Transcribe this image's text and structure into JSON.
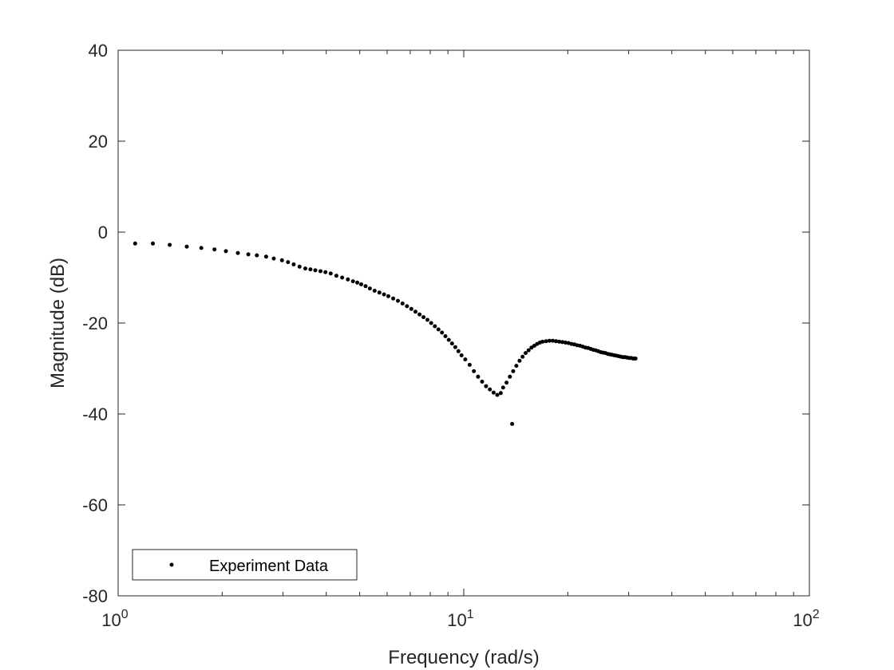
{
  "chart_data": {
    "type": "scatter",
    "xlabel": "Frequency (rad/s)",
    "ylabel": "Magnitude (dB)",
    "xscale": "log",
    "xlim": [
      1,
      100
    ],
    "ylim": [
      -80,
      40
    ],
    "xticks": [
      {
        "value": 1,
        "base": "10",
        "exp": "0"
      },
      {
        "value": 10,
        "base": "10",
        "exp": "1"
      },
      {
        "value": 100,
        "base": "10",
        "exp": "2"
      }
    ],
    "yticks": [
      {
        "value": 40,
        "label": "40"
      },
      {
        "value": 20,
        "label": "20"
      },
      {
        "value": 0,
        "label": "0"
      },
      {
        "value": -20,
        "label": "-20"
      },
      {
        "value": -40,
        "label": "-40"
      },
      {
        "value": -60,
        "label": "-60"
      },
      {
        "value": -80,
        "label": "-80"
      }
    ],
    "grid": false,
    "legend_position": "bottom-left",
    "marker_color": "#000000",
    "series": [
      {
        "name": "Experiment Data",
        "x": [
          1.12,
          1.26,
          1.41,
          1.58,
          1.74,
          1.9,
          2.05,
          2.22,
          2.38,
          2.52,
          2.68,
          2.82,
          2.98,
          3.1,
          3.22,
          3.35,
          3.48,
          3.6,
          3.72,
          3.85,
          3.98,
          4.12,
          4.28,
          4.45,
          4.62,
          4.78,
          4.92,
          5.05,
          5.2,
          5.35,
          5.52,
          5.7,
          5.88,
          6.05,
          6.25,
          6.45,
          6.65,
          6.85,
          7.05,
          7.25,
          7.45,
          7.65,
          7.85,
          8.05,
          8.25,
          8.45,
          8.65,
          8.85,
          9.05,
          9.25,
          9.45,
          9.65,
          9.85,
          10.1,
          10.4,
          10.7,
          11.0,
          11.3,
          11.6,
          11.9,
          12.2,
          12.5,
          12.8,
          13.0,
          13.3,
          13.6,
          13.9,
          14.2,
          14.5,
          14.8,
          15.1,
          15.4,
          15.7,
          16.0,
          16.3,
          16.6,
          16.9,
          17.3,
          17.7,
          18.1,
          18.5,
          18.9,
          19.3,
          19.7,
          20.1,
          20.5,
          20.9,
          21.3,
          21.7,
          22.1,
          22.5,
          22.9,
          23.3,
          23.7,
          24.1,
          24.5,
          24.9,
          25.3,
          25.7,
          26.1,
          26.5,
          26.9,
          27.3,
          27.7,
          28.1,
          28.5,
          28.9,
          29.3,
          29.7,
          30.1,
          30.5,
          30.9,
          31.2,
          31.4,
          13.8
        ],
        "y": [
          -2.5,
          -2.5,
          -2.8,
          -3.2,
          -3.5,
          -3.8,
          -4.2,
          -4.6,
          -4.9,
          -5.1,
          -5.4,
          -5.8,
          -6.2,
          -6.6,
          -7.1,
          -7.6,
          -8.0,
          -8.2,
          -8.4,
          -8.6,
          -8.8,
          -9.1,
          -9.6,
          -10.0,
          -10.4,
          -10.8,
          -11.1,
          -11.5,
          -11.9,
          -12.4,
          -12.9,
          -13.3,
          -13.7,
          -14.1,
          -14.6,
          -15.1,
          -15.7,
          -16.3,
          -16.9,
          -17.5,
          -18.1,
          -18.7,
          -19.3,
          -20.0,
          -20.7,
          -21.4,
          -22.1,
          -22.9,
          -23.7,
          -24.5,
          -25.3,
          -26.2,
          -27.1,
          -28.0,
          -29.2,
          -30.6,
          -31.8,
          -32.9,
          -33.9,
          -34.6,
          -35.3,
          -35.8,
          -35.4,
          -34.2,
          -33.1,
          -31.8,
          -30.6,
          -29.4,
          -28.3,
          -27.4,
          -26.6,
          -26.0,
          -25.4,
          -25.0,
          -24.6,
          -24.3,
          -24.1,
          -24.0,
          -23.9,
          -23.9,
          -24.0,
          -24.1,
          -24.2,
          -24.3,
          -24.4,
          -24.6,
          -24.7,
          -24.9,
          -25.0,
          -25.2,
          -25.4,
          -25.5,
          -25.7,
          -25.9,
          -26.0,
          -26.2,
          -26.4,
          -26.5,
          -26.6,
          -26.8,
          -26.9,
          -27.0,
          -27.1,
          -27.2,
          -27.3,
          -27.4,
          -27.5,
          -27.5,
          -27.6,
          -27.7,
          -27.7,
          -27.8,
          -27.8,
          -27.8,
          -42.2
        ]
      }
    ]
  }
}
